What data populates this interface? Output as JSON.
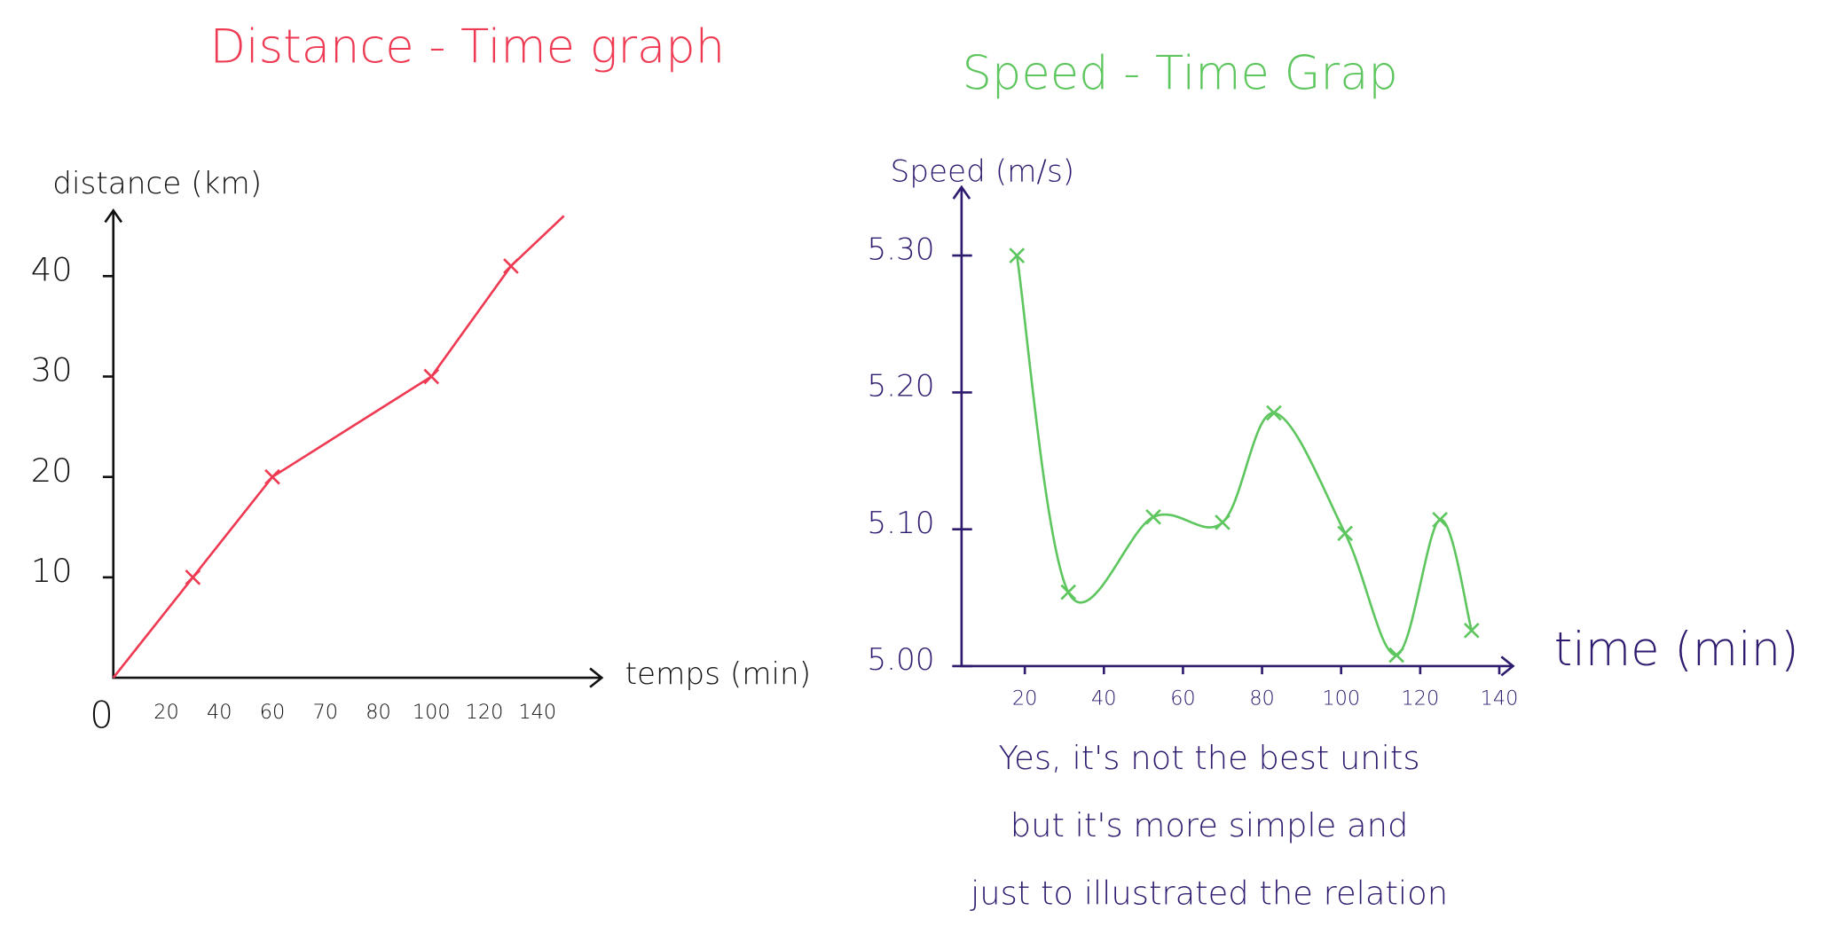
{
  "chart_data": [
    {
      "type": "line",
      "title": "Distance - Time graph",
      "title_color": "#ee3a52",
      "x_label": "temps (min)",
      "y_label": "distance (km)",
      "x_tick_spacing": "even",
      "x": [
        0,
        30,
        60,
        100,
        130,
        150
      ],
      "series": [
        {
          "color": "#ee3a52",
          "values": [
            0,
            10,
            20,
            30,
            41,
            46
          ]
        }
      ],
      "xlim": [
        0,
        170
      ],
      "xticks": [
        0,
        20,
        40,
        60,
        70,
        80,
        100,
        120,
        140
      ],
      "ylim": [
        0,
        47
      ],
      "yticks": [
        10,
        20,
        30,
        40
      ]
    },
    {
      "type": "line",
      "title": "Speed - Time Grap",
      "title_color": "#5ec65e",
      "x_label": "time (min)",
      "y_label": "Speed (m/s)",
      "x": [
        18,
        31,
        52.5,
        70,
        83,
        101,
        114,
        125,
        133
      ],
      "series": [
        {
          "color": "#5ec65e",
          "values": [
            5.3,
            5.054,
            5.109,
            5.105,
            5.185,
            5.097,
            5.008,
            5.107,
            5.026
          ]
        }
      ],
      "xlim": [
        4,
        142
      ],
      "xticks": [
        20,
        40,
        60,
        80,
        100,
        120,
        140
      ],
      "ylim": [
        5.0,
        5.35
      ],
      "yticks": [
        {
          "value": 5.0,
          "label": "5.00"
        },
        {
          "value": 5.1,
          "label": "5.10"
        },
        {
          "value": 5.2,
          "label": "5.20"
        },
        {
          "value": 5.3,
          "label": "5.30"
        }
      ],
      "annotation": [
        "Yes, it's not the best units",
        "but it's more simple and",
        "just to illustrated the relation"
      ]
    }
  ]
}
